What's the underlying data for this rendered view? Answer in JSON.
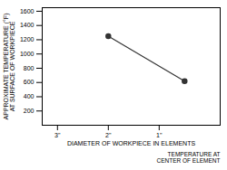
{
  "chart_data": {
    "type": "line",
    "x": [
      2,
      0.5
    ],
    "values": [
      1250,
      620
    ],
    "xlabel": "DIAMETER OF WORKPIECE IN ELEMENTS",
    "ylabel": "APPROXIMATE TEMPERATURE (°F)\nAT SURFACE OF WORKPIECE",
    "annotation": "TEMPERATURE AT\nCENTER OF ELEMENT",
    "xlim": [
      3.3,
      -0.2
    ],
    "xticks": [
      {
        "value": 3,
        "label": "3\""
      },
      {
        "value": 2,
        "label": "2\""
      },
      {
        "value": 1,
        "label": "1\""
      }
    ],
    "ylim": [
      0,
      1650
    ],
    "yticks": [
      200,
      400,
      600,
      800,
      1000,
      1200,
      1400,
      1600
    ],
    "color": "#333333",
    "marker": "circle",
    "grid": false
  }
}
